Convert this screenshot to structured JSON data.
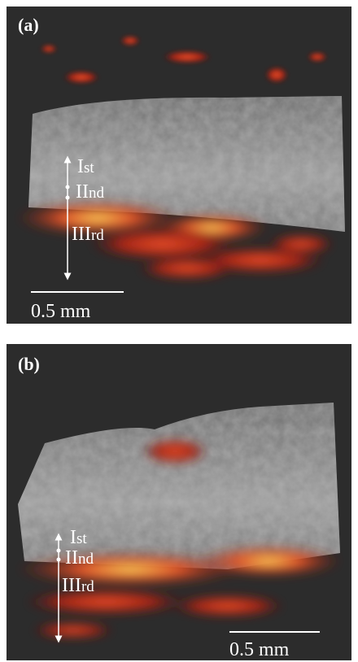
{
  "panels": [
    {
      "label": "(a)",
      "layers": [
        {
          "numeral": "I",
          "suffix": "st"
        },
        {
          "numeral": "II",
          "suffix": "nd"
        },
        {
          "numeral": "III",
          "suffix": "rd"
        }
      ],
      "scale_bar": "0.5 mm"
    },
    {
      "label": "(b)",
      "layers": [
        {
          "numeral": "I",
          "suffix": "st"
        },
        {
          "numeral": "II",
          "suffix": "nd"
        },
        {
          "numeral": "III",
          "suffix": "rd"
        }
      ],
      "scale_bar": "0.5 mm"
    }
  ]
}
